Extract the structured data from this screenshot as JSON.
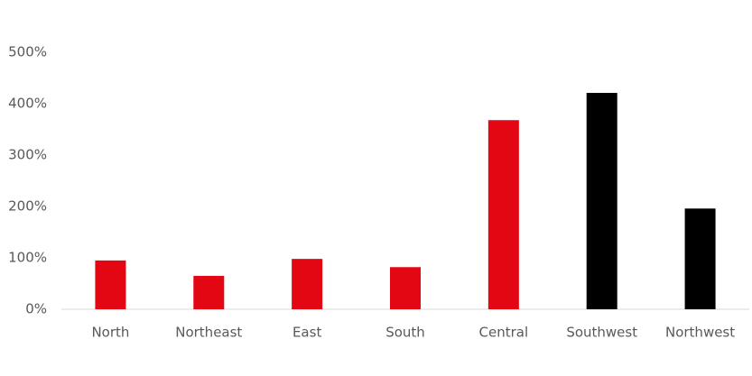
{
  "chart_data": {
    "type": "bar",
    "categories": [
      "North",
      "Northeast",
      "East",
      "South",
      "Central",
      "Southwest",
      "Northwest"
    ],
    "values": [
      95,
      65,
      98,
      82,
      368,
      421,
      196
    ],
    "colors": [
      "#e30613",
      "#e30613",
      "#e30613",
      "#e30613",
      "#e30613",
      "#000000",
      "#000000"
    ],
    "ylim": [
      0,
      500
    ],
    "yticks": [
      {
        "value": 0,
        "label": "0%"
      },
      {
        "value": 100,
        "label": "100%"
      },
      {
        "value": 200,
        "label": "200%"
      },
      {
        "value": 300,
        "label": "300%"
      },
      {
        "value": 400,
        "label": "400%"
      },
      {
        "value": 500,
        "label": "500%"
      }
    ],
    "grid": false
  }
}
